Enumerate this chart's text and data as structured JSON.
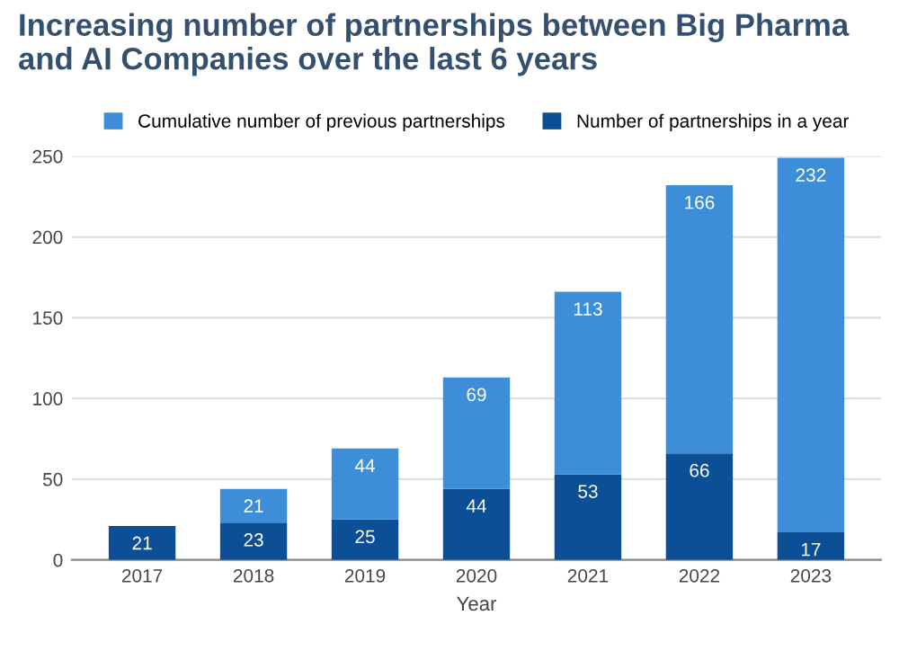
{
  "chart_data": {
    "type": "bar",
    "title": "Increasing number of partnerships between Big Pharma\nand AI Companies over the last 6 years",
    "xlabel": "Year",
    "categories": [
      "2017",
      "2018",
      "2019",
      "2020",
      "2021",
      "2022",
      "2023"
    ],
    "stacked": true,
    "series": [
      {
        "name": "Number of partnerships in a year",
        "color": "#0d4f96",
        "values": [
          21,
          23,
          25,
          44,
          53,
          66,
          17
        ]
      },
      {
        "name": "Cumulative number of previous partnerships",
        "color": "#3d8ed8",
        "values": [
          null,
          21,
          44,
          69,
          113,
          166,
          232
        ]
      }
    ],
    "ylim": [
      0,
      250
    ],
    "yticks": [
      0,
      50,
      100,
      150,
      200,
      250
    ],
    "grid": "y",
    "legend": "top",
    "data_labels": true
  }
}
